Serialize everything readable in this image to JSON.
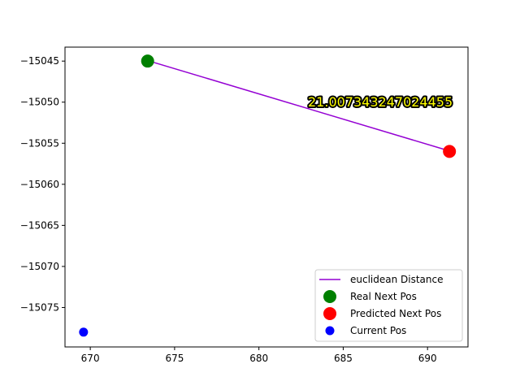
{
  "chart_data": {
    "type": "scatter",
    "title": "",
    "xlabel": "",
    "ylabel": "",
    "xlim": [
      668.5,
      692.4
    ],
    "ylim": [
      -15079.8,
      -15043.3
    ],
    "xticks": [
      670,
      675,
      680,
      685,
      690
    ],
    "yticks": [
      -15045,
      -15050,
      -15055,
      -15060,
      -15065,
      -15070,
      -15075
    ],
    "grid": false,
    "legend_position": "lower-right",
    "series": [
      {
        "name": "euclidean Distance",
        "kind": "line",
        "color": "#9400d3",
        "points": [
          {
            "x": 673.5,
            "y": -15045.0
          },
          {
            "x": 691.4,
            "y": -15056.0
          }
        ]
      },
      {
        "name": "Real Next Pos",
        "kind": "point",
        "color": "#008000",
        "size": "large",
        "points": [
          {
            "x": 673.4,
            "y": -15045.0
          }
        ]
      },
      {
        "name": "Predicted Next Pos",
        "kind": "point",
        "color": "#ff0000",
        "size": "large",
        "points": [
          {
            "x": 691.3,
            "y": -15056.0
          }
        ]
      },
      {
        "name": "Current Pos",
        "kind": "point",
        "color": "#0000ff",
        "size": "small",
        "points": [
          {
            "x": 669.6,
            "y": -15078.0
          }
        ]
      }
    ],
    "annotation": {
      "text": "21.007343247024455",
      "x": 687.2,
      "y": -15050.0
    }
  }
}
